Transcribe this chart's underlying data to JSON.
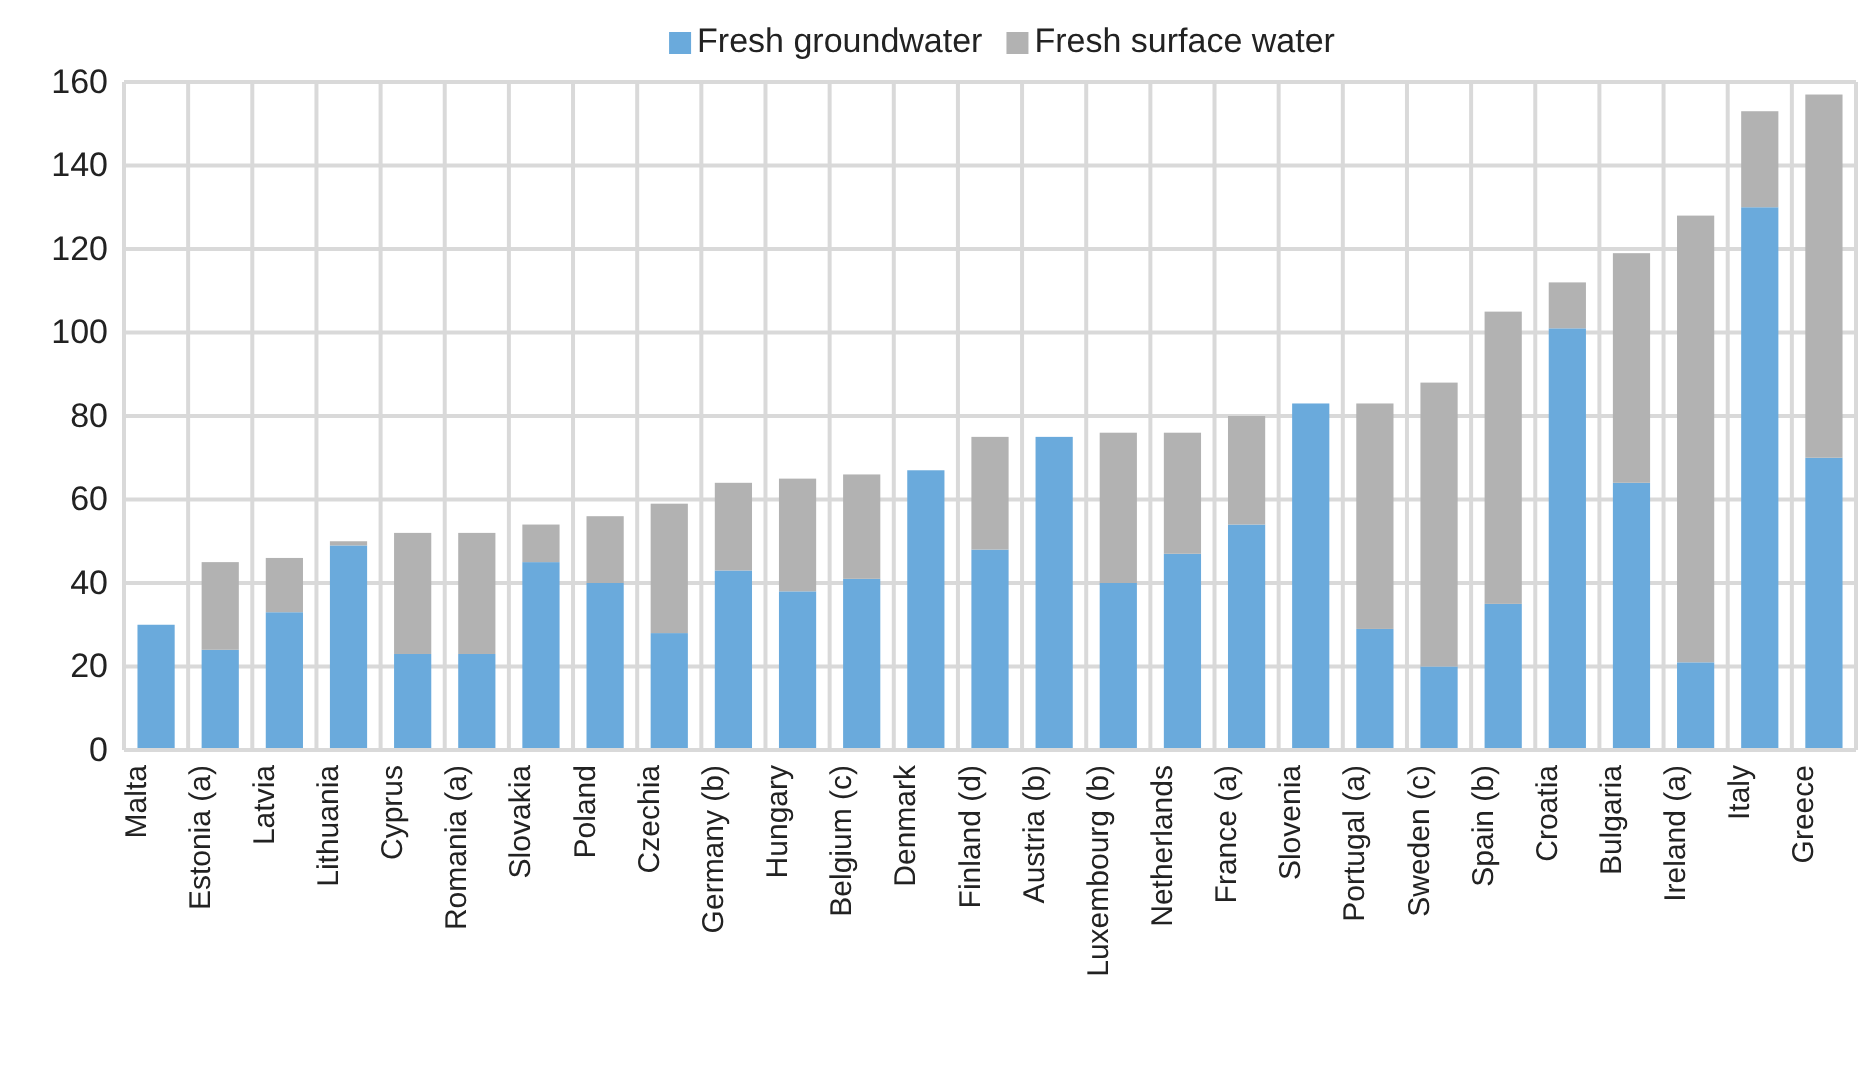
{
  "chart_data": {
    "type": "bar",
    "stacked": true,
    "legend": "top",
    "grid": true,
    "categories": [
      "Malta",
      "Estonia (a)",
      "Latvia",
      "Lithuania",
      "Cyprus",
      "Romania (a)",
      "Slovakia",
      "Poland",
      "Czechia",
      "Germany (b)",
      "Hungary",
      "Belgium (c)",
      "Denmark",
      "Finland (d)",
      "Austria (b)",
      "Luxembourg (b)",
      "Netherlands",
      "France (a)",
      "Slovenia",
      "Portugal (a)",
      "Sweden (c)",
      "Spain (b)",
      "Croatia",
      "Bulgaria",
      "Ireland (a)",
      "Italy",
      "Greece"
    ],
    "series": [
      {
        "name": "Fresh groundwater",
        "color": "#6aaadc",
        "values": [
          30,
          24,
          33,
          49,
          23,
          23,
          45,
          40,
          28,
          43,
          38,
          41,
          67,
          48,
          75,
          40,
          47,
          54,
          83,
          29,
          20,
          35,
          101,
          64,
          21,
          130,
          70
        ]
      },
      {
        "name": "Fresh surface water",
        "color": "#b2b2b2",
        "values": [
          0,
          21,
          13,
          1,
          29,
          29,
          9,
          16,
          31,
          21,
          27,
          25,
          0,
          27,
          0,
          36,
          29,
          26,
          0,
          54,
          68,
          70,
          11,
          55,
          107,
          23,
          87
        ]
      }
    ],
    "ylim": [
      0,
      160
    ],
    "yticks": [
      0,
      20,
      40,
      60,
      80,
      100,
      120,
      140,
      160
    ]
  }
}
